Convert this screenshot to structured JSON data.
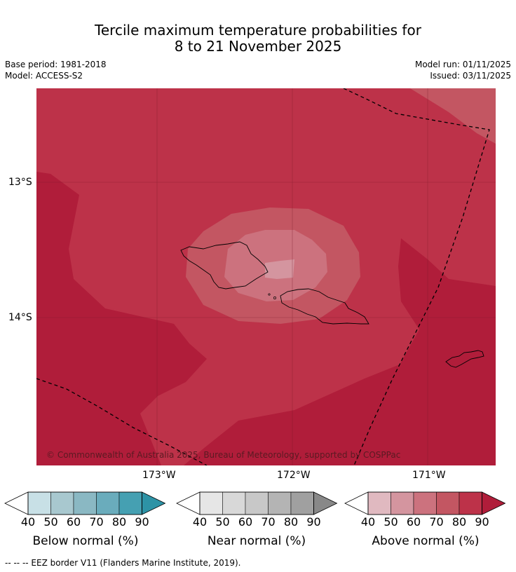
{
  "title": {
    "line1": "Tercile maximum temperature probabilities for",
    "line2": "8 to 21 November 2025"
  },
  "meta": {
    "base_period": "Base period: 1981-2018",
    "model": "Model: ACCESS-S2",
    "model_run": "Model run: 01/11/2025",
    "issued": "Issued: 03/11/2025"
  },
  "map": {
    "lat_ticks": [
      "13°S",
      "14°S"
    ],
    "lon_ticks": [
      "173°W",
      "172°W",
      "171°W"
    ],
    "copyright": "© Commonwealth of Australia 2025, Bureau of Meteorology, supported by COSPPac",
    "dominant_category": "Above normal",
    "colors": {
      "above_50": "#e0b9c0",
      "above_60": "#d4959f",
      "above_70": "#cc727e",
      "above_80": "#c35662",
      "above_80_90": "#bd3249",
      "above_90": "#b01d3a"
    }
  },
  "legends": [
    {
      "label": "Below normal (%)",
      "ticks": [
        "40",
        "50",
        "60",
        "70",
        "80",
        "90"
      ],
      "colors": [
        "#c8e0e6",
        "#a8c8cf",
        "#8ab8c3",
        "#6aacbc",
        "#45a0b2",
        "#2d93a6"
      ]
    },
    {
      "label": "Near normal (%)",
      "ticks": [
        "40",
        "50",
        "60",
        "70",
        "80",
        "90"
      ],
      "colors": [
        "#e6e6e6",
        "#d8d8d8",
        "#c8c8c8",
        "#b4b4b4",
        "#a0a0a0",
        "#888888"
      ]
    },
    {
      "label": "Above normal (%)",
      "ticks": [
        "40",
        "50",
        "60",
        "70",
        "80",
        "90"
      ],
      "colors": [
        "#e0b9c0",
        "#d4959f",
        "#cc727e",
        "#c35662",
        "#bd3249",
        "#b01d3a"
      ]
    }
  ],
  "footnote": "--  --  -- EEZ border V11 (Flanders Marine Institute, 2019)."
}
